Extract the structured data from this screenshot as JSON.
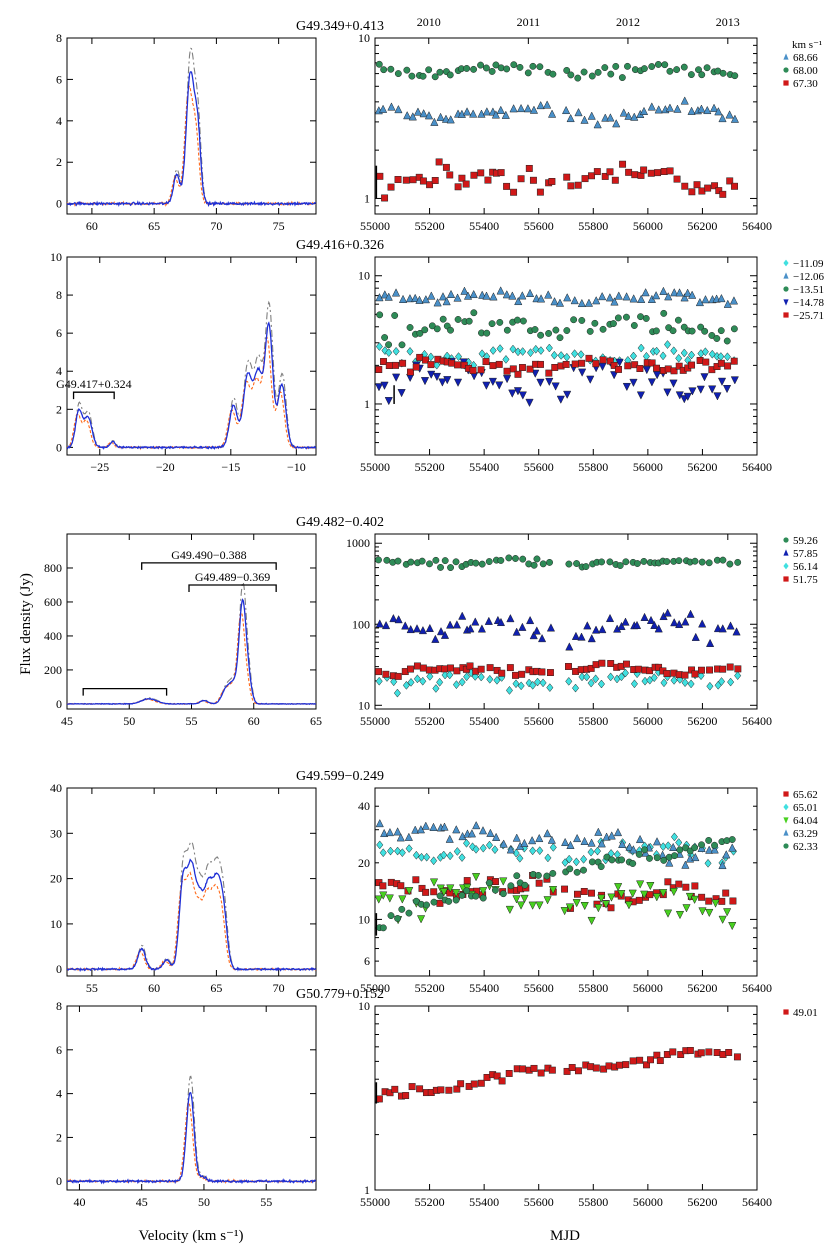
{
  "figure": {
    "ylabel": "Flux density (Jy)",
    "xlabel_spectrum": "Velocity (km s⁻¹)",
    "xlabel_timeseries": "MJD",
    "legend_unit": "km s⁻¹",
    "top_axis_years": [
      {
        "label": "2010",
        "mjd": 55197
      },
      {
        "label": "2011",
        "mjd": 55562
      },
      {
        "label": "2012",
        "mjd": 55927
      },
      {
        "label": "2013",
        "mjd": 56293
      }
    ]
  },
  "colors": {
    "observed": "#1f2fd6",
    "model_dashed": "#ff6a1a",
    "model_dashdot": "#808080"
  },
  "chart_data": [
    {
      "type": "line",
      "panel": 1,
      "title": "G49.349+0.413",
      "spectrum": {
        "xlim": [
          58,
          78
        ],
        "ylim": [
          -0.5,
          8
        ],
        "yscale": "linear",
        "xticks": [
          60,
          65,
          70,
          75
        ],
        "yticks": [
          0,
          2,
          4,
          6,
          8
        ],
        "peaks": [
          {
            "v": 66.8,
            "s": 1.4,
            "w": 0.25
          },
          {
            "v": 67.9,
            "s": 6.2,
            "w": 0.32
          },
          {
            "v": 68.5,
            "s": 3.3,
            "w": 0.25
          }
        ],
        "noise": 0.06,
        "annotations": []
      },
      "timeseries": {
        "type": "scatter",
        "xlim": [
          55000,
          56400
        ],
        "ylim": [
          0.8,
          10
        ],
        "yscale": "log",
        "xticks": [
          55000,
          55200,
          55400,
          55600,
          55800,
          56000,
          56200,
          56400
        ],
        "yticks": [
          1,
          10
        ],
        "errorbar": {
          "mjd": 55005,
          "y": 1.3,
          "err": 0.3
        },
        "series": [
          {
            "name": "68.66",
            "marker": "triangle",
            "color": "#4a90c8",
            "base": 3.4,
            "amp": 0.35,
            "trend": 0.0
          },
          {
            "name": "68.00",
            "marker": "circle",
            "color": "#2e8b57",
            "base": 6.3,
            "amp": 0.5,
            "trend": 0.0
          },
          {
            "name": "67.30",
            "marker": "square",
            "color": "#d01818",
            "base": 1.35,
            "amp": 0.25,
            "trend": 0.0
          }
        ]
      }
    },
    {
      "type": "line",
      "panel": 2,
      "title": "G49.416+0.326",
      "spectrum": {
        "xlim": [
          -27.5,
          -8.5
        ],
        "ylim": [
          -0.4,
          10
        ],
        "yscale": "linear",
        "xticks": [
          -25,
          -20,
          -15,
          -10
        ],
        "yticks": [
          0,
          2,
          4,
          6,
          8,
          10
        ],
        "peaks": [
          {
            "v": -26.6,
            "s": 1.9,
            "w": 0.25
          },
          {
            "v": -25.9,
            "s": 1.6,
            "w": 0.3
          },
          {
            "v": -24.0,
            "s": 0.3,
            "w": 0.2
          },
          {
            "v": -14.8,
            "s": 2.2,
            "w": 0.3
          },
          {
            "v": -13.7,
            "s": 3.8,
            "w": 0.35
          },
          {
            "v": -12.9,
            "s": 3.7,
            "w": 0.3
          },
          {
            "v": -12.1,
            "s": 6.4,
            "w": 0.3
          },
          {
            "v": -11.1,
            "s": 3.3,
            "w": 0.3
          }
        ],
        "noise": 0.05,
        "annotations": [
          {
            "label": "G49.417+0.324",
            "from": -27.0,
            "to": -23.9,
            "y": 2.9
          }
        ]
      },
      "timeseries": {
        "type": "scatter",
        "xlim": [
          55000,
          56400
        ],
        "ylim": [
          0.4,
          14
        ],
        "yscale": "log",
        "xticks": [
          55000,
          55200,
          55400,
          55600,
          55800,
          56000,
          56200,
          56400
        ],
        "yticks": [
          1,
          10
        ],
        "errorbar": {
          "mjd": 55070,
          "y": 1.2,
          "err": 0.2
        },
        "series": [
          {
            "name": "−11.09",
            "marker": "diamond",
            "color": "#40e0e0",
            "base": 2.4,
            "amp": 0.3,
            "trend": 0.0
          },
          {
            "name": "−12.06",
            "marker": "triangle",
            "color": "#4a90c8",
            "base": 6.8,
            "amp": 0.6,
            "trend": 0.0
          },
          {
            "name": "−13.51",
            "marker": "circle",
            "color": "#2e8b57",
            "base": 4.0,
            "amp": 0.9,
            "trend": 0.0
          },
          {
            "name": "−14.78",
            "marker": "triangle-down",
            "color": "#1020b0",
            "base": 1.6,
            "amp": 0.45,
            "trend": 0.0
          },
          {
            "name": "−25.71",
            "marker": "square",
            "color": "#d01818",
            "base": 2.0,
            "amp": 0.25,
            "trend": 0.0
          }
        ]
      }
    },
    {
      "type": "line",
      "panel": 3,
      "title": "G49.482−0.402",
      "spectrum": {
        "xlim": [
          45,
          65
        ],
        "ylim": [
          -30,
          1000
        ],
        "yscale": "linear",
        "xticks": [
          45,
          50,
          55,
          60,
          65
        ],
        "yticks": [
          0,
          200,
          400,
          600,
          800
        ],
        "peaks": [
          {
            "v": 51.6,
            "s": 30,
            "w": 0.6
          },
          {
            "v": 56.0,
            "s": 20,
            "w": 0.3
          },
          {
            "v": 57.8,
            "s": 90,
            "w": 0.35
          },
          {
            "v": 58.4,
            "s": 100,
            "w": 0.3
          },
          {
            "v": 59.1,
            "s": 590,
            "w": 0.28
          },
          {
            "v": 59.6,
            "s": 120,
            "w": 0.25
          }
        ],
        "noise": 2,
        "annotations": [
          {
            "label": "G49.490−0.388",
            "from": 51.0,
            "to": 61.8,
            "y": 830
          },
          {
            "label": "G49.489−0.369",
            "from": 54.8,
            "to": 61.8,
            "y": 700
          },
          {
            "label": "",
            "from": 46.3,
            "to": 53.0,
            "y": 90
          }
        ]
      },
      "timeseries": {
        "type": "scatter",
        "xlim": [
          55000,
          56400
        ],
        "ylim": [
          9,
          1300
        ],
        "yscale": "log",
        "xticks": [
          55000,
          55200,
          55400,
          55600,
          55800,
          56000,
          56200,
          56400
        ],
        "yticks": [
          10,
          100,
          1000
        ],
        "errorbar": null,
        "series": [
          {
            "name": "59.26",
            "marker": "circle",
            "color": "#2e8b57",
            "base": 580,
            "amp": 60,
            "trend": 0.0
          },
          {
            "name": "57.85",
            "marker": "triangle",
            "color": "#1020b0",
            "base": 95,
            "amp": 30,
            "trend": 0.0
          },
          {
            "name": "56.14",
            "marker": "diamond",
            "color": "#40e0e0",
            "base": 21,
            "amp": 4,
            "trend": 0.0
          },
          {
            "name": "51.75",
            "marker": "square",
            "color": "#d01818",
            "base": 28,
            "amp": 4,
            "trend": 0.0
          }
        ]
      }
    },
    {
      "type": "line",
      "panel": 4,
      "title": "G49.599−0.249",
      "spectrum": {
        "xlim": [
          53,
          73
        ],
        "ylim": [
          -1.5,
          40
        ],
        "yscale": "linear",
        "xticks": [
          55,
          60,
          65,
          70
        ],
        "yticks": [
          0,
          10,
          20,
          30,
          40
        ],
        "peaks": [
          {
            "v": 59.0,
            "s": 4.5,
            "w": 0.3
          },
          {
            "v": 61.0,
            "s": 2,
            "w": 0.3
          },
          {
            "v": 62.3,
            "s": 18,
            "w": 0.3
          },
          {
            "v": 63.0,
            "s": 22,
            "w": 0.35
          },
          {
            "v": 63.7,
            "s": 13,
            "w": 0.3
          },
          {
            "v": 64.3,
            "s": 14,
            "w": 0.3
          },
          {
            "v": 65.0,
            "s": 19,
            "w": 0.4
          },
          {
            "v": 65.6,
            "s": 9,
            "w": 0.3
          }
        ],
        "noise": 0.2,
        "annotations": []
      },
      "timeseries": {
        "type": "scatter",
        "xlim": [
          55000,
          56400
        ],
        "ylim": [
          5,
          50
        ],
        "yscale": "log",
        "xticks": [
          55000,
          55200,
          55400,
          55600,
          55800,
          56000,
          56200,
          56400
        ],
        "yticks": [
          6,
          10,
          20,
          40
        ],
        "errorbar": {
          "mjd": 55005,
          "y": 9.5,
          "err": 1.3
        },
        "series": [
          {
            "name": "65.62",
            "marker": "square",
            "color": "#d01818",
            "base": 15,
            "amp": 2,
            "trend": -2
          },
          {
            "name": "65.01",
            "marker": "diamond",
            "color": "#40e0e0",
            "base": 23,
            "amp": 3,
            "trend": 0.0
          },
          {
            "name": "64.04",
            "marker": "triangle-down",
            "color": "#48d020",
            "base": 14,
            "amp": 2.5,
            "trend": -2
          },
          {
            "name": "63.29",
            "marker": "triangle",
            "color": "#4a90c8",
            "base": 30,
            "amp": 3,
            "trend": -8
          },
          {
            "name": "62.33",
            "marker": "circle",
            "color": "#2e8b57",
            "base": 9,
            "amp": 1.5,
            "trend": 18
          }
        ]
      }
    },
    {
      "type": "line",
      "panel": 5,
      "title": "G50.779+0.152",
      "spectrum": {
        "xlim": [
          39,
          59
        ],
        "ylim": [
          -0.4,
          8
        ],
        "yscale": "linear",
        "xticks": [
          40,
          45,
          50,
          55
        ],
        "yticks": [
          0,
          2,
          4,
          6,
          8
        ],
        "peaks": [
          {
            "v": 48.9,
            "s": 4.1,
            "w": 0.3
          },
          {
            "v": 49.9,
            "s": 0.2,
            "w": 0.3
          }
        ],
        "noise": 0.05,
        "annotations": []
      },
      "timeseries": {
        "type": "scatter",
        "xlim": [
          55000,
          56400
        ],
        "ylim": [
          1,
          10
        ],
        "yscale": "log",
        "xticks": [
          55000,
          55200,
          55400,
          55600,
          55800,
          56000,
          56200,
          56400
        ],
        "yticks": [
          1,
          10
        ],
        "errorbar": {
          "mjd": 55005,
          "y": 3.4,
          "err": 0.45
        },
        "series": [
          {
            "name": "49.01",
            "marker": "square",
            "color": "#d01818",
            "base": 3.2,
            "amp": 0.3,
            "trend": 2.6
          }
        ]
      }
    }
  ]
}
